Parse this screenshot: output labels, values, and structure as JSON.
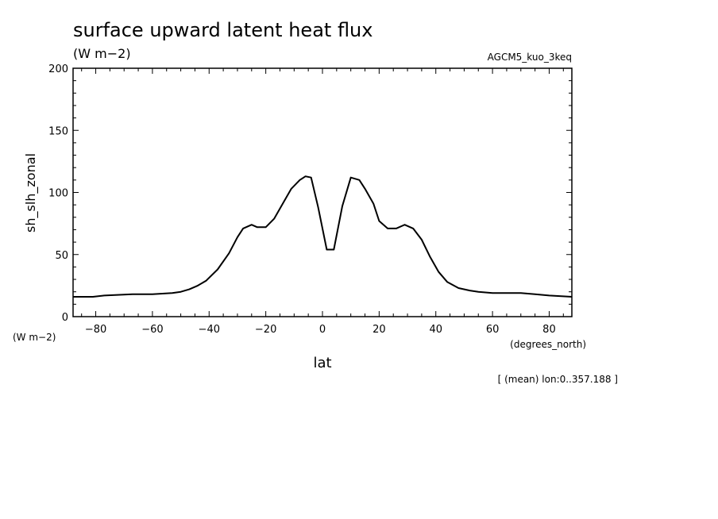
{
  "chart_data": {
    "type": "line",
    "title": "surface upward latent heat flux",
    "units": "(W m−2)",
    "dataset": "AGCM5_kuo_3keq",
    "xlabel": "lat",
    "x_units": "(degrees_north)",
    "ylabel": "sh_slh_zonal",
    "y_units": "(W m−2)",
    "footnote": "[ (mean) lon:0..357.188 ]",
    "xlim": [
      -88,
      88
    ],
    "ylim": [
      0,
      200
    ],
    "x_ticks": [
      -80,
      -60,
      -40,
      -20,
      0,
      20,
      40,
      60,
      80
    ],
    "x_tick_labels": [
      "−80",
      "−60",
      "−40",
      "−20",
      "0",
      "20",
      "40",
      "60",
      "80"
    ],
    "y_ticks": [
      0,
      50,
      100,
      150,
      200
    ],
    "y_tick_labels": [
      "0",
      "50",
      "100",
      "150",
      "200"
    ],
    "grid": false,
    "series": [
      {
        "x": [
          -88,
          -81,
          -77,
          -67,
          -60,
          -53,
          -50,
          -47,
          -44,
          -41,
          -37,
          -33,
          -30,
          -28,
          -25,
          -23,
          -20,
          -17,
          -14,
          -11,
          -8,
          -6,
          -4,
          -1.5,
          1.5,
          4,
          7,
          10,
          13,
          15,
          18,
          20,
          23,
          26,
          29,
          32,
          35,
          38,
          41,
          44,
          48,
          52,
          55,
          60,
          65,
          70,
          75,
          80,
          88
        ],
        "y": [
          16,
          16,
          17,
          18,
          18,
          19,
          20,
          22,
          25,
          29,
          38,
          51,
          64,
          71,
          74,
          72,
          72,
          79,
          91,
          103,
          110,
          113,
          112,
          88,
          54,
          54,
          89,
          112,
          110,
          103,
          91,
          77,
          71,
          71,
          74,
          71,
          62,
          48,
          36,
          28,
          23,
          21,
          20,
          19,
          19,
          19,
          18,
          17,
          16
        ]
      }
    ]
  }
}
